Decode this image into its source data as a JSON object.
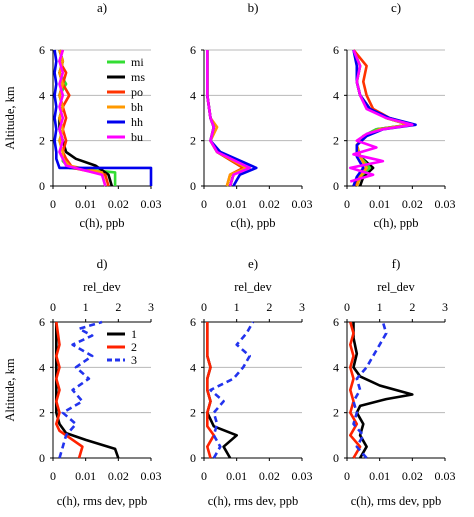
{
  "chart_data": [
    {
      "id": "a",
      "panel_label": "a)",
      "type": "line",
      "xlabel": "c(h), ppb",
      "ylabel": "Altitude, km",
      "xlim": [
        0,
        0.03
      ],
      "ylim": [
        0,
        6
      ],
      "xticks": [
        "0",
        "0.01",
        "0.02",
        "0.03"
      ],
      "yticks": [
        "0",
        "2",
        "4",
        "6"
      ],
      "legend": "top-right",
      "series": [
        {
          "name": "mi",
          "color": "#33dd33",
          "x": [
            0.019,
            0.019,
            0.005,
            0.003,
            0.003,
            0.002,
            0.003,
            0.002,
            0.003,
            0.002,
            0.004,
            0.002,
            0.003,
            0.002
          ],
          "y": [
            0,
            0.6,
            0.8,
            1.1,
            1.5,
            2,
            2.5,
            3,
            3.5,
            4,
            4.5,
            5,
            5.5,
            6
          ]
        },
        {
          "name": "ms",
          "color": "#000000",
          "x": [
            0.018,
            0.017,
            0.013,
            0.007,
            0.004,
            0.003,
            0.002,
            0.002,
            0.003,
            0.002,
            0.003,
            0.002,
            0.003,
            0.002
          ],
          "y": [
            0,
            0.5,
            0.9,
            1.2,
            1.5,
            2,
            2.5,
            3,
            3.5,
            4,
            4.5,
            5,
            5.5,
            6
          ]
        },
        {
          "name": "po",
          "color": "#ff3300",
          "x": [
            0.017,
            0.016,
            0.006,
            0.004,
            0.003,
            0.004,
            0.003,
            0.004,
            0.003,
            0.005,
            0.003,
            0.004,
            0.002,
            0.003
          ],
          "y": [
            0,
            0.5,
            0.8,
            1.2,
            1.5,
            2,
            2.5,
            3,
            3.5,
            4,
            4.5,
            5,
            5.5,
            6
          ]
        },
        {
          "name": "bh",
          "color": "#ff9900",
          "x": [
            0.016,
            0.015,
            0.005,
            0.003,
            0.003,
            0.002,
            0.003,
            0.002,
            0.003,
            0.002,
            0.003,
            0.002,
            0.003,
            0.002
          ],
          "y": [
            0,
            0.6,
            0.9,
            1.2,
            1.5,
            2,
            2.5,
            3,
            3.5,
            4,
            4.5,
            5,
            5.5,
            6
          ]
        },
        {
          "name": "hh",
          "color": "#0000ee",
          "x": [
            0.03,
            0.03,
            0.002,
            0.001,
            0.001,
            0.0005,
            0.001,
            0.0005,
            0.001,
            0.0005,
            0.001,
            0.0005,
            0.001,
            0.0005
          ],
          "y": [
            0,
            0.8,
            0.8,
            1.2,
            1.5,
            2,
            2.5,
            3,
            3.5,
            4,
            4.5,
            5,
            5.5,
            6
          ]
        },
        {
          "name": "bu",
          "color": "#ff00ff",
          "x": [
            0.016,
            0.015,
            0.004,
            0.003,
            0.002,
            0.003,
            0.002,
            0.003,
            0.002,
            0.003,
            0.002,
            0.003,
            0.002,
            0.003
          ],
          "y": [
            0,
            0.5,
            0.9,
            1.2,
            1.5,
            2,
            2.5,
            3,
            3.5,
            4,
            4.5,
            5,
            5.5,
            6
          ]
        }
      ]
    },
    {
      "id": "b",
      "panel_label": "b)",
      "type": "line",
      "xlabel": "c(h), ppb",
      "ylabel": "",
      "xlim": [
        0,
        0.03
      ],
      "ylim": [
        0,
        6
      ],
      "xticks": [
        "0",
        "0.01",
        "0.02",
        "0.03"
      ],
      "yticks": [
        "0",
        "2",
        "4",
        "6"
      ],
      "series": [
        {
          "color": "#33dd33",
          "x": [
            0.008,
            0.009,
            0.012,
            0.004,
            0.002,
            0.003,
            0.002,
            0.001,
            0.001,
            0.001
          ],
          "y": [
            0,
            0.5,
            0.8,
            1.5,
            2,
            2.6,
            3,
            4,
            5,
            6
          ]
        },
        {
          "color": "#000000",
          "x": [
            0.008,
            0.009,
            0.013,
            0.004,
            0.002,
            0.003,
            0.002,
            0.001,
            0.001,
            0.001
          ],
          "y": [
            0,
            0.5,
            0.8,
            1.5,
            2,
            2.6,
            3,
            4,
            5,
            6
          ]
        },
        {
          "color": "#ff3300",
          "x": [
            0.007,
            0.008,
            0.012,
            0.004,
            0.002,
            0.003,
            0.002,
            0.001,
            0.001,
            0.001
          ],
          "y": [
            0,
            0.5,
            0.8,
            1.5,
            2,
            2.6,
            3,
            4,
            5,
            6
          ]
        },
        {
          "color": "#ff9900",
          "x": [
            0.007,
            0.008,
            0.013,
            0.004,
            0.002,
            0.004,
            0.002,
            0.001,
            0.001,
            0.001
          ],
          "y": [
            0,
            0.5,
            0.8,
            1.5,
            2,
            2.6,
            3,
            4,
            5,
            6
          ]
        },
        {
          "color": "#0000ee",
          "x": [
            0.009,
            0.011,
            0.016,
            0.005,
            0.002,
            0.003,
            0.002,
            0.001,
            0.001,
            0.001
          ],
          "y": [
            0,
            0.5,
            0.8,
            1.5,
            2,
            2.6,
            3,
            4,
            5,
            6
          ]
        },
        {
          "color": "#ff00ff",
          "x": [
            0.008,
            0.009,
            0.014,
            0.004,
            0.002,
            0.003,
            0.002,
            0.001,
            0.001,
            0.001
          ],
          "y": [
            0,
            0.5,
            0.8,
            1.5,
            2,
            2.6,
            3,
            4,
            5,
            6
          ]
        }
      ]
    },
    {
      "id": "c",
      "panel_label": "c)",
      "type": "line",
      "xlabel": "c(h), ppb",
      "ylabel": "",
      "xlim": [
        0,
        0.03
      ],
      "ylim": [
        0,
        6
      ],
      "xticks": [
        "0",
        "0.01",
        "0.02",
        "0.03"
      ],
      "yticks": [
        "0",
        "2",
        "4",
        "6"
      ],
      "series": [
        {
          "color": "#000000",
          "x": [
            0.004,
            0.005,
            0.008,
            0.004,
            0.003,
            0.005,
            0.009,
            0.019,
            0.012,
            0.007,
            0.004,
            0.003,
            0.004,
            0.002
          ],
          "y": [
            0,
            0.4,
            0.8,
            1.3,
            1.8,
            2.2,
            2.5,
            2.7,
            3,
            3.4,
            4,
            4.6,
            5.3,
            6
          ]
        },
        {
          "color": "#33dd33",
          "x": [
            0.003,
            0.004,
            0.007,
            0.004,
            0.003,
            0.005,
            0.009,
            0.019,
            0.012,
            0.007,
            0.004,
            0.003,
            0.004,
            0.002
          ],
          "y": [
            0,
            0.4,
            0.8,
            1.3,
            1.8,
            2.2,
            2.5,
            2.7,
            3,
            3.4,
            4,
            4.6,
            5.3,
            6
          ]
        },
        {
          "color": "#ff3300",
          "x": [
            0.002,
            0.004,
            0.006,
            0.004,
            0.003,
            0.006,
            0.01,
            0.02,
            0.013,
            0.008,
            0.006,
            0.005,
            0.006,
            0.002
          ],
          "y": [
            0,
            0.4,
            0.8,
            1.3,
            1.8,
            2.2,
            2.5,
            2.7,
            3,
            3.4,
            4,
            4.6,
            5.3,
            6
          ]
        },
        {
          "color": "#ff9900",
          "x": [
            0.003,
            0.004,
            0.006,
            0.004,
            0.003,
            0.005,
            0.01,
            0.019,
            0.012,
            0.007,
            0.004,
            0.003,
            0.004,
            0.002
          ],
          "y": [
            0,
            0.4,
            0.8,
            1.3,
            1.8,
            2.2,
            2.5,
            2.7,
            3,
            3.4,
            4,
            4.6,
            5.3,
            6
          ]
        },
        {
          "color": "#0000ee",
          "x": [
            0.002,
            0.003,
            0.005,
            0.003,
            0.003,
            0.006,
            0.011,
            0.021,
            0.013,
            0.007,
            0.004,
            0.003,
            0.003,
            0.002
          ],
          "y": [
            0,
            0.4,
            0.8,
            1.3,
            1.8,
            2.2,
            2.5,
            2.7,
            3,
            3.4,
            4,
            4.6,
            5.3,
            6
          ]
        },
        {
          "color": "#ff00ff",
          "x": [
            0.001,
            0.008,
            0.001,
            0.011,
            0.002,
            0.009,
            0.003,
            0.006,
            0.011,
            0.02,
            0.012,
            0.006,
            0.004,
            0.003,
            0.004,
            0.002
          ],
          "y": [
            0.2,
            0.5,
            0.8,
            1.1,
            1.4,
            1.7,
            2,
            2.3,
            2.5,
            2.7,
            3,
            3.4,
            4,
            4.6,
            5.3,
            6
          ]
        }
      ]
    },
    {
      "id": "d",
      "panel_label": "d)",
      "type": "line",
      "xlabel": "c(h), rms dev, ppb",
      "ylabel": "Altitude, km",
      "top_axis_label": "rel_dev",
      "xlim": [
        0,
        0.03
      ],
      "ylim": [
        0,
        6
      ],
      "top_xlim": [
        0,
        3
      ],
      "xticks": [
        "0",
        "0.01",
        "0.02",
        "0.03"
      ],
      "yticks": [
        "0",
        "2",
        "4",
        "6"
      ],
      "top_xticks": [
        "0",
        "1",
        "2",
        "3"
      ],
      "legend": "top-right",
      "series": [
        {
          "name": "1",
          "color": "#000000",
          "dash": "solid",
          "axis": "bottom",
          "x": [
            0.02,
            0.019,
            0.01,
            0.004,
            0.002,
            0.001,
            0.001,
            0.001,
            0.001,
            0.001,
            0.001,
            0.001,
            0.001
          ],
          "y": [
            0,
            0.4,
            0.8,
            1.1,
            1.5,
            2,
            2.5,
            3,
            3.5,
            4,
            4.5,
            5,
            6
          ]
        },
        {
          "name": "2",
          "color": "#ff2200",
          "dash": "solid",
          "axis": "bottom",
          "x": [
            0.008,
            0.009,
            0.005,
            0.002,
            0.001,
            0.002,
            0.001,
            0.002,
            0.001,
            0.002,
            0.001,
            0.002,
            0.001
          ],
          "y": [
            0,
            0.5,
            0.9,
            1.2,
            1.5,
            2,
            2.5,
            3,
            3.5,
            4,
            4.5,
            5,
            6
          ]
        },
        {
          "name": "3",
          "color": "#2233ee",
          "dash": "dashed",
          "axis": "top",
          "x": [
            0.2,
            0.3,
            0.4,
            0.7,
            0.3,
            0.9,
            0.6,
            1.1,
            0.7,
            1.2,
            0.6,
            1.2,
            0.8,
            1.5
          ],
          "y": [
            0,
            0.5,
            1,
            1.5,
            2,
            2.5,
            3,
            3.5,
            4,
            4.5,
            5,
            5.4,
            5.7,
            6
          ]
        }
      ]
    },
    {
      "id": "e",
      "panel_label": "e)",
      "type": "line",
      "xlabel": "c(h), rms dev, ppb",
      "ylabel": "",
      "top_axis_label": "rel_dev",
      "xlim": [
        0,
        0.03
      ],
      "ylim": [
        0,
        6
      ],
      "top_xlim": [
        0,
        3
      ],
      "xticks": [
        "0",
        "0.01",
        "0.02",
        "0.03"
      ],
      "yticks": [
        "0",
        "2",
        "4",
        "6"
      ],
      "top_xticks": [
        "0",
        "1",
        "2",
        "3"
      ],
      "series": [
        {
          "color": "#000000",
          "dash": "solid",
          "axis": "bottom",
          "x": [
            0.008,
            0.006,
            0.01,
            0.003,
            0.001,
            0.002,
            0.001,
            0.001,
            0.002,
            0.001,
            0.001,
            0.001,
            0.001
          ],
          "y": [
            0,
            0.5,
            1,
            1.4,
            2,
            2.5,
            3,
            3.5,
            4,
            4.5,
            5,
            5.5,
            6
          ]
        },
        {
          "color": "#ff2200",
          "dash": "solid",
          "axis": "bottom",
          "x": [
            0.002,
            0.001,
            0.003,
            0.001,
            0.001,
            0.002,
            0.001,
            0.001,
            0.002,
            0.001,
            0.001,
            0.001,
            0.001
          ],
          "y": [
            0,
            0.5,
            1,
            1.4,
            2,
            2.5,
            3,
            3.5,
            4,
            4.5,
            5,
            5.5,
            6
          ]
        },
        {
          "color": "#2233ee",
          "dash": "dashed",
          "axis": "top",
          "x": [
            0.3,
            0.5,
            0.3,
            0.4,
            0.3,
            0.6,
            0.2,
            0.9,
            1.2,
            1.4,
            1,
            1.3,
            1.5
          ],
          "y": [
            0,
            0.5,
            1,
            1.5,
            2,
            2.5,
            3,
            3.5,
            4,
            4.5,
            5,
            5.5,
            6
          ]
        }
      ]
    },
    {
      "id": "f",
      "panel_label": "f)",
      "type": "line",
      "xlabel": "c(h), rms dev, ppb",
      "ylabel": "",
      "top_axis_label": "rel_dev",
      "xlim": [
        0,
        0.03
      ],
      "ylim": [
        0,
        6
      ],
      "top_xlim": [
        0,
        3
      ],
      "xticks": [
        "0",
        "0.01",
        "0.02",
        "0.03"
      ],
      "yticks": [
        "0",
        "2",
        "4",
        "6"
      ],
      "top_xticks": [
        "0",
        "1",
        "2",
        "3"
      ],
      "series": [
        {
          "color": "#000000",
          "dash": "solid",
          "axis": "bottom",
          "x": [
            0.004,
            0.006,
            0.004,
            0.005,
            0.003,
            0.004,
            0.012,
            0.02,
            0.01,
            0.004,
            0.002,
            0.003,
            0.002,
            0.002
          ],
          "y": [
            0,
            0.5,
            1,
            1.5,
            2,
            2.3,
            2.6,
            2.8,
            3.2,
            3.6,
            4,
            4.6,
            5.3,
            6
          ]
        },
        {
          "color": "#ff2200",
          "dash": "solid",
          "axis": "bottom",
          "x": [
            0.002,
            0.004,
            0.001,
            0.003,
            0.001,
            0.002,
            0.001,
            0.002,
            0.001,
            0.002,
            0.001,
            0.002,
            0.001
          ],
          "y": [
            0,
            0.5,
            1,
            1.5,
            2,
            2.5,
            3,
            3.5,
            4,
            4.5,
            5,
            5.5,
            6
          ]
        },
        {
          "color": "#2233ee",
          "dash": "dashed",
          "axis": "top",
          "x": [
            0.6,
            0.3,
            0.5,
            0.2,
            0.3,
            0.2,
            0.4,
            0.3,
            0.6,
            0.8,
            1,
            1.2,
            1.1
          ],
          "y": [
            0,
            0.5,
            1,
            1.5,
            2,
            2.5,
            3,
            3.5,
            4,
            4.5,
            5,
            5.5,
            6
          ]
        }
      ]
    }
  ]
}
